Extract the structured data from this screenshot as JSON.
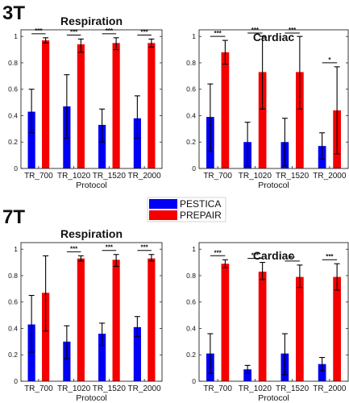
{
  "colors": {
    "pestica": "#0000f5",
    "prepair": "#f50000",
    "axis": "#262626",
    "errorbar": "#000000"
  },
  "legend": {
    "entries": [
      "PESTICA",
      "PREPAIR"
    ]
  },
  "sections": [
    "3T",
    "7T"
  ],
  "chart_data": [
    {
      "type": "bar",
      "section": "3T",
      "title": "Respiration",
      "xlabel": "Protocol",
      "ylabel": "",
      "categories": [
        "TR_700",
        "TR_1020",
        "TR_1520",
        "TR_2000"
      ],
      "ylim": [
        0,
        1.05
      ],
      "yticks": [
        "0",
        "0.2",
        "0.4",
        "0.6",
        "0.8",
        "1"
      ],
      "series": [
        {
          "name": "PESTICA",
          "values": [
            0.43,
            0.47,
            0.33,
            0.38
          ],
          "err_low": [
            0.27,
            0.23,
            0.2,
            0.23
          ],
          "err_high": [
            0.6,
            0.71,
            0.45,
            0.55
          ]
        },
        {
          "name": "PREPAIR",
          "values": [
            0.97,
            0.94,
            0.95,
            0.95
          ],
          "err_low": [
            0.95,
            0.88,
            0.9,
            0.92
          ],
          "err_high": [
            0.99,
            0.98,
            0.99,
            0.98
          ]
        }
      ],
      "significance": [
        "***",
        "***",
        "***",
        "***"
      ]
    },
    {
      "type": "bar",
      "section": "3T",
      "title": "Cardiac",
      "xlabel": "Protocol",
      "ylabel": "",
      "categories": [
        "TR_700",
        "TR_1020",
        "TR_1520",
        "TR_2000"
      ],
      "ylim": [
        0,
        1.05
      ],
      "yticks": [
        "0",
        "0.2",
        "0.4",
        "0.6",
        "0.8",
        "1"
      ],
      "series": [
        {
          "name": "PESTICA",
          "values": [
            0.39,
            0.2,
            0.2,
            0.17
          ],
          "err_low": [
            0.13,
            0.02,
            0.02,
            0.07
          ],
          "err_high": [
            0.64,
            0.35,
            0.38,
            0.27
          ]
        },
        {
          "name": "PREPAIR",
          "values": [
            0.88,
            0.73,
            0.73,
            0.44
          ],
          "err_low": [
            0.79,
            0.45,
            0.45,
            0.11
          ],
          "err_high": [
            0.97,
            1.0,
            1.0,
            0.77
          ]
        }
      ],
      "significance": [
        "***",
        "***",
        "***",
        "*"
      ]
    },
    {
      "type": "bar",
      "section": "7T",
      "title": "Respiration",
      "xlabel": "Protocol",
      "ylabel": "",
      "categories": [
        "TR_700",
        "TR_1020",
        "TR_1520",
        "TR_2000"
      ],
      "ylim": [
        0,
        1.05
      ],
      "yticks": [
        "0",
        "0.2",
        "0.4",
        "0.6",
        "0.8",
        "1"
      ],
      "series": [
        {
          "name": "PESTICA",
          "values": [
            0.43,
            0.3,
            0.36,
            0.41
          ],
          "err_low": [
            0.22,
            0.17,
            0.27,
            0.34
          ],
          "err_high": [
            0.65,
            0.42,
            0.44,
            0.49
          ]
        },
        {
          "name": "PREPAIR",
          "values": [
            0.67,
            0.93,
            0.92,
            0.93
          ],
          "err_low": [
            0.38,
            0.91,
            0.87,
            0.91
          ],
          "err_high": [
            0.95,
            0.95,
            0.96,
            0.96
          ]
        }
      ],
      "significance": [
        "",
        "***",
        "***",
        "***"
      ]
    },
    {
      "type": "bar",
      "section": "7T",
      "title": "Cardiac",
      "xlabel": "Protocol",
      "ylabel": "",
      "categories": [
        "TR_700",
        "TR_1020",
        "TR_1520",
        "TR_2000"
      ],
      "ylim": [
        0,
        1.05
      ],
      "yticks": [
        "0",
        "0.2",
        "0.4",
        "0.6",
        "0.8",
        "1"
      ],
      "series": [
        {
          "name": "PESTICA",
          "values": [
            0.21,
            0.09,
            0.21,
            0.13
          ],
          "err_low": [
            0.06,
            0.06,
            0.05,
            0.08
          ],
          "err_high": [
            0.36,
            0.12,
            0.36,
            0.18
          ]
        },
        {
          "name": "PREPAIR",
          "values": [
            0.89,
            0.83,
            0.79,
            0.79
          ],
          "err_low": [
            0.86,
            0.77,
            0.71,
            0.69
          ],
          "err_high": [
            0.92,
            0.9,
            0.88,
            0.89
          ]
        }
      ],
      "significance": [
        "***",
        "***",
        "**",
        "***"
      ]
    }
  ]
}
